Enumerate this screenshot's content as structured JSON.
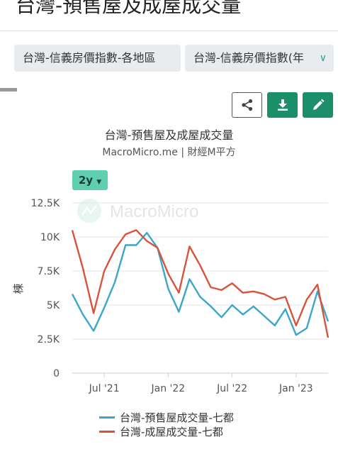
{
  "page": {
    "title": "台灣-預售屋及成屋成交量",
    "tags": [
      "台灣-信義房價指數-各地區",
      "台灣-信義房價指數(年"
    ],
    "range_label": "2y"
  },
  "icons": {
    "share": "share-icon",
    "download": "download-icon",
    "edit": "pencil-icon",
    "watermark": "macromicro-logo"
  },
  "colors": {
    "accent": "#1a8f6a",
    "series_presale": "#3aa6cc",
    "series_completed": "#d9533a"
  },
  "chart_data": {
    "type": "line",
    "title": "台灣-預售屋及成屋成交量",
    "subtitle": "MacroMicro.me | 財經M平方",
    "watermark": "MacroMicro",
    "ylabel": "棟",
    "ylim": [
      0,
      12500
    ],
    "yticks": [
      0,
      2500,
      5000,
      7500,
      10000,
      12500
    ],
    "ytick_labels": [
      "0",
      "2.5K",
      "5K",
      "7.5K",
      "10K",
      "12.5K"
    ],
    "xlim": [
      "2021-04",
      "2023-05"
    ],
    "xticks": [
      "2021-07",
      "2022-01",
      "2022-07",
      "2023-01"
    ],
    "xtick_labels": [
      "Jul '21",
      "Jan '22",
      "Jul '22",
      "Jan '23"
    ],
    "x": [
      "2021-04",
      "2021-05",
      "2021-06",
      "2021-07",
      "2021-08",
      "2021-09",
      "2021-10",
      "2021-11",
      "2021-12",
      "2022-01",
      "2022-02",
      "2022-03",
      "2022-04",
      "2022-05",
      "2022-06",
      "2022-07",
      "2022-08",
      "2022-09",
      "2022-10",
      "2022-11",
      "2022-12",
      "2023-01",
      "2023-02",
      "2023-03",
      "2023-04"
    ],
    "grid": "horizontal",
    "legend_position": "bottom",
    "series": [
      {
        "name": "台灣-預售屋成交量-七都",
        "values": [
          5800,
          4300,
          3100,
          4800,
          6700,
          9400,
          9400,
          10300,
          9200,
          6200,
          4500,
          6900,
          5600,
          4900,
          4100,
          5000,
          4300,
          4900,
          4200,
          3500,
          4700,
          2800,
          3300,
          6000,
          3800
        ]
      },
      {
        "name": "台灣-成屋成交量-七都",
        "values": [
          10500,
          7700,
          4400,
          7500,
          9100,
          10200,
          10500,
          9700,
          9200,
          7300,
          5900,
          9300,
          7900,
          6300,
          6100,
          6600,
          5900,
          6000,
          5800,
          5400,
          5600,
          3500,
          5400,
          6500,
          2600
        ]
      }
    ]
  }
}
